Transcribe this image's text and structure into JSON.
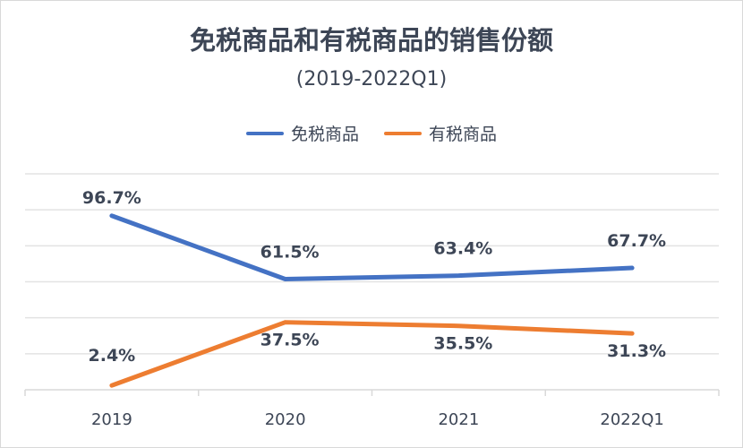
{
  "chart_data": {
    "type": "line",
    "title": "免税商品和有税商品的销售份额",
    "subtitle": "(2019-2022Q1)",
    "categories": [
      "2019",
      "2020",
      "2021",
      "2022Q1"
    ],
    "series": [
      {
        "name": "免税商品",
        "color": "#4472C4",
        "values": [
          96.7,
          61.5,
          63.4,
          67.7
        ],
        "labels": [
          "96.7%",
          "61.5%",
          "63.4%",
          "67.7%"
        ]
      },
      {
        "name": "有税商品",
        "color": "#ED7D31",
        "values": [
          2.4,
          37.5,
          35.5,
          31.3
        ],
        "labels": [
          "2.4%",
          "37.5%",
          "35.5%",
          "31.3%"
        ]
      }
    ],
    "ylim": [
      0,
      120
    ],
    "grid": true,
    "legend": "top",
    "xlabel": "",
    "ylabel": ""
  }
}
